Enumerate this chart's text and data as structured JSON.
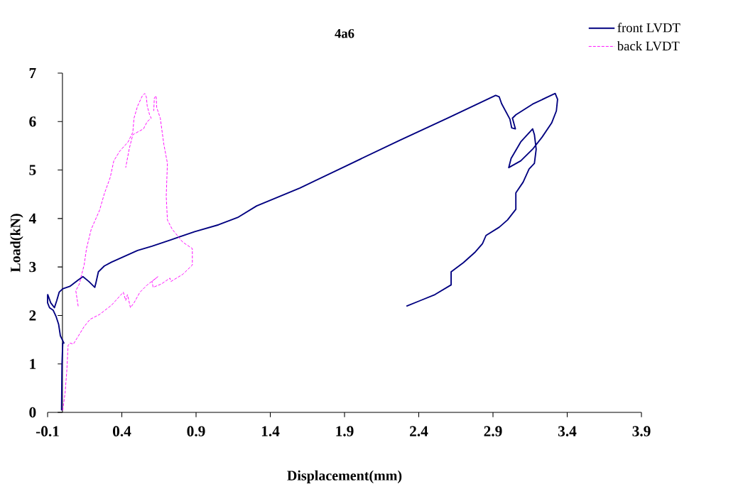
{
  "chart_data": {
    "type": "line",
    "title": "4a6",
    "xlabel": "Displacement(mm)",
    "ylabel": "Load(kN)",
    "xlim": [
      -0.1,
      3.9
    ],
    "ylim": [
      0,
      7
    ],
    "xticks": [
      -0.1,
      0.4,
      0.9,
      1.4,
      1.9,
      2.4,
      2.9,
      3.4,
      3.9
    ],
    "yticks": [
      0,
      1,
      2,
      3,
      4,
      5,
      6,
      7
    ],
    "legend": "top right",
    "series": [
      {
        "name": "front LVDT",
        "color": "#000080",
        "line_style": "solid",
        "x": [
          -0.006,
          -0.003,
          0.002,
          0.01,
          -0.014,
          -0.026,
          -0.042,
          -0.063,
          -0.087,
          -0.1,
          -0.1,
          -0.099,
          -0.079,
          -0.054,
          -0.038,
          -0.022,
          0.002,
          0.05,
          0.106,
          0.138,
          0.178,
          0.218,
          0.226,
          0.242,
          0.282,
          0.33,
          0.41,
          0.506,
          0.603,
          0.731,
          0.891,
          1.051,
          1.18,
          1.308,
          1.6,
          1.9,
          2.27,
          2.6,
          2.918,
          2.942,
          2.958,
          3.014,
          3.026,
          3.051,
          3.031,
          3.054,
          3.167,
          3.263,
          3.319,
          3.335,
          3.327,
          3.295,
          3.231,
          3.167,
          3.087,
          3.006,
          3.022,
          3.087,
          3.167,
          3.179,
          3.191,
          3.179,
          3.143,
          3.103,
          3.054,
          3.054,
          2.998,
          2.942,
          2.853,
          2.829,
          2.781,
          2.701,
          2.618,
          2.618,
          2.509,
          2.413,
          2.317
        ],
        "values": [
          0.04,
          0.99,
          1.43,
          1.43,
          1.58,
          1.82,
          1.97,
          2.11,
          2.16,
          2.26,
          2.41,
          2.43,
          2.26,
          2.16,
          2.31,
          2.48,
          2.55,
          2.6,
          2.73,
          2.8,
          2.7,
          2.58,
          2.68,
          2.9,
          3.02,
          3.1,
          3.21,
          3.34,
          3.43,
          3.56,
          3.73,
          3.87,
          4.02,
          4.26,
          4.63,
          5.07,
          5.61,
          6.08,
          6.54,
          6.51,
          6.37,
          6.05,
          5.87,
          5.85,
          6.07,
          6.14,
          6.36,
          6.5,
          6.58,
          6.46,
          6.22,
          5.97,
          5.68,
          5.43,
          5.19,
          5.05,
          5.24,
          5.58,
          5.85,
          5.73,
          5.43,
          5.14,
          5.02,
          4.75,
          4.53,
          4.19,
          3.97,
          3.82,
          3.65,
          3.48,
          3.31,
          3.09,
          2.9,
          2.63,
          2.43,
          2.31,
          2.19
        ]
      },
      {
        "name": "back LVDT",
        "color": "#ff00ff",
        "line_style": "dashed",
        "x": [
          0.002,
          0.018,
          0.029,
          0.038,
          0.05,
          0.074,
          0.098,
          0.146,
          0.186,
          0.25,
          0.33,
          0.41,
          0.426,
          0.438,
          0.458,
          0.482,
          0.522,
          0.571,
          0.643,
          0.603,
          0.611,
          0.667,
          0.724,
          0.731,
          0.811,
          0.875,
          0.875,
          0.811,
          0.739,
          0.707,
          0.699,
          0.707,
          0.683,
          0.659,
          0.635,
          0.631,
          0.619,
          0.615,
          null,
          0.106,
          0.09,
          0.114,
          0.13,
          0.146,
          0.162,
          0.194,
          0.25,
          0.282,
          0.322,
          0.346,
          0.386,
          0.442,
          0.474,
          0.482,
          0.506,
          0.538,
          0.554,
          0.565,
          0.571,
          0.587,
          0.598,
          0.571,
          0.546,
          0.474,
          0.45,
          0.426
        ],
        "values": [
          0.04,
          0.41,
          0.84,
          1.38,
          1.43,
          1.41,
          1.53,
          1.77,
          1.92,
          2.02,
          2.21,
          2.48,
          2.31,
          2.43,
          2.16,
          2.26,
          2.48,
          2.63,
          2.8,
          2.7,
          2.58,
          2.65,
          2.77,
          2.7,
          2.85,
          3.04,
          3.38,
          3.51,
          3.78,
          3.97,
          4.46,
          5.14,
          5.53,
          6.07,
          6.29,
          6.53,
          6.49,
          6.22,
          null,
          2.19,
          2.51,
          2.65,
          2.85,
          3.04,
          3.38,
          3.78,
          4.17,
          4.51,
          4.85,
          5.19,
          5.39,
          5.58,
          5.78,
          6.07,
          6.32,
          6.53,
          6.58,
          6.51,
          6.32,
          6.14,
          6.07,
          6.0,
          5.85,
          5.73,
          5.44,
          5.05
        ]
      }
    ]
  }
}
